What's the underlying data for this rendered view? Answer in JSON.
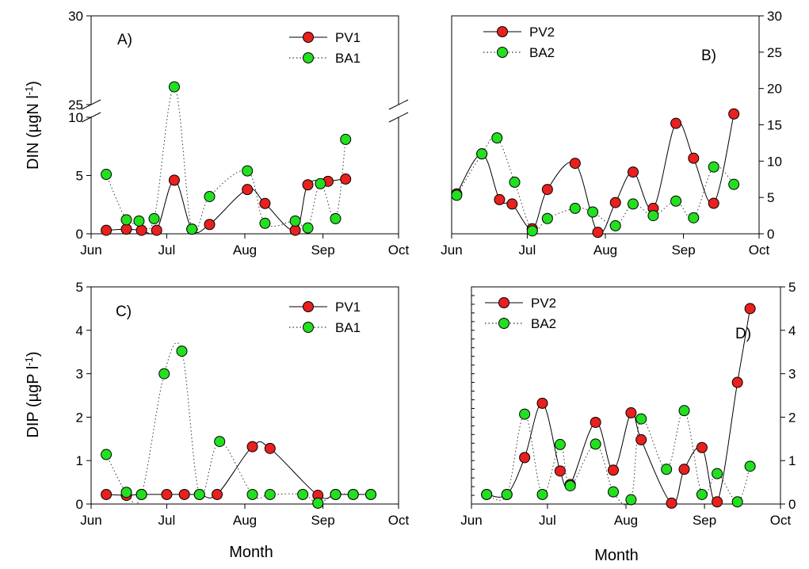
{
  "axis_titles": {
    "x_left": "Month",
    "x_right": "Month",
    "y_top_main": "DIN (µgN l",
    "y_top_sup": "-1",
    "y_top_end": ")",
    "y_bottom_main": "DIP (µgP l",
    "y_bottom_sup": "-1",
    "y_bottom_end": ")"
  },
  "colors": {
    "pv": "#e8201e",
    "ba": "#22e01f",
    "marker_edge": "#000000"
  },
  "chart_data": [
    {
      "id": "A",
      "label": "A)",
      "type": "line",
      "y_axis_side": "left",
      "broken_axis": true,
      "y_break": [
        10,
        25
      ],
      "ylim": [
        0,
        30
      ],
      "yticks": [
        0,
        5,
        10,
        25,
        30
      ],
      "x_ticks": [
        "Jun",
        "Jul",
        "Aug",
        "Sep",
        "Oct"
      ],
      "x_tick_values": [
        0,
        30,
        61,
        92,
        122
      ],
      "xlim": [
        0,
        122
      ],
      "legend_position": "top-right",
      "series": [
        {
          "name": "PV1",
          "line": "solid",
          "color_key": "pv",
          "x": [
            6,
            14,
            20,
            26,
            33,
            40,
            47,
            62,
            69,
            81,
            86,
            94,
            101
          ],
          "y": [
            0.3,
            0.4,
            0.3,
            0.3,
            4.6,
            0.4,
            0.8,
            3.8,
            2.6,
            0.3,
            4.2,
            4.5,
            4.7
          ]
        },
        {
          "name": "BA1",
          "line": "dotted",
          "color_key": "ba",
          "x": [
            6,
            14,
            19,
            25,
            33,
            40,
            47,
            62,
            69,
            81,
            86,
            91,
            97,
            101
          ],
          "y": [
            5.1,
            1.2,
            1.1,
            1.3,
            26.0,
            0.4,
            3.2,
            5.4,
            0.9,
            1.1,
            0.5,
            4.3,
            1.3,
            8.1
          ]
        }
      ]
    },
    {
      "id": "B",
      "label": "B)",
      "type": "line",
      "y_axis_side": "right",
      "broken_axis": false,
      "ylim": [
        0,
        30
      ],
      "yticks": [
        0,
        5,
        10,
        15,
        20,
        25,
        30
      ],
      "x_ticks": [
        "Jun",
        "Jul",
        "Aug",
        "Sep",
        "Oct"
      ],
      "x_tick_values": [
        0,
        30,
        61,
        92,
        122
      ],
      "xlim": [
        0,
        122
      ],
      "legend_position": "top-left",
      "series": [
        {
          "name": "PV2",
          "line": "solid",
          "color_key": "pv",
          "x": [
            2,
            12,
            19,
            24,
            32,
            38,
            49,
            58,
            65,
            72,
            80,
            89,
            96,
            104,
            112
          ],
          "y": [
            5.5,
            11.0,
            4.7,
            4.1,
            0.7,
            6.1,
            9.7,
            0.2,
            4.3,
            8.5,
            3.5,
            15.2,
            10.4,
            4.2,
            16.5
          ]
        },
        {
          "name": "BA2",
          "line": "dotted",
          "color_key": "ba",
          "x": [
            2,
            12,
            18,
            25,
            32,
            38,
            49,
            56,
            65,
            72,
            80,
            89,
            96,
            104,
            112
          ],
          "y": [
            5.3,
            11.0,
            13.2,
            7.1,
            0.4,
            2.1,
            3.5,
            3.0,
            1.1,
            4.1,
            2.5,
            4.5,
            2.2,
            9.2,
            6.8
          ]
        }
      ]
    },
    {
      "id": "C",
      "label": "C)",
      "type": "line",
      "y_axis_side": "left",
      "broken_axis": false,
      "ylim": [
        0,
        5
      ],
      "yticks": [
        0,
        1,
        2,
        3,
        4,
        5
      ],
      "x_ticks": [
        "Jun",
        "Jul",
        "Aug",
        "Sep",
        "Oct"
      ],
      "x_tick_values": [
        0,
        30,
        61,
        92,
        122
      ],
      "xlim": [
        0,
        122
      ],
      "legend_position": "top-right",
      "series": [
        {
          "name": "PV1",
          "line": "solid",
          "color_key": "pv",
          "x": [
            6,
            14,
            20,
            30,
            37,
            43,
            50,
            64,
            71,
            90,
            97,
            104,
            111
          ],
          "y": [
            0.22,
            0.2,
            0.22,
            0.22,
            0.22,
            0.22,
            0.22,
            1.32,
            1.28,
            0.2,
            0.22,
            0.22,
            0.22
          ]
        },
        {
          "name": "BA1",
          "line": "dotted",
          "color_key": "ba",
          "x": [
            6,
            14,
            20,
            29,
            36,
            43,
            51,
            64,
            71,
            84,
            90,
            97,
            104,
            111
          ],
          "y": [
            1.14,
            0.27,
            0.22,
            3.0,
            3.52,
            0.22,
            1.44,
            0.22,
            0.22,
            0.22,
            0.02,
            0.22,
            0.22,
            0.22
          ]
        }
      ]
    },
    {
      "id": "D",
      "label": "D)",
      "type": "line",
      "y_axis_side": "right",
      "broken_axis": false,
      "ylim": [
        0,
        5
      ],
      "yticks": [
        0,
        1,
        2,
        3,
        4,
        5
      ],
      "x_ticks": [
        "Jun",
        "Jul",
        "Aug",
        "Sep",
        "Oct"
      ],
      "x_tick_values": [
        0,
        30,
        61,
        92,
        122
      ],
      "xlim": [
        0,
        122
      ],
      "legend_position": "top-left",
      "series": [
        {
          "name": "PV2",
          "line": "solid",
          "color_key": "pv",
          "x": [
            6,
            14,
            21,
            28,
            35,
            39,
            49,
            56,
            63,
            67,
            79,
            84,
            91,
            97,
            105,
            110
          ],
          "y": [
            0.22,
            0.22,
            1.07,
            2.32,
            0.76,
            0.45,
            1.88,
            0.78,
            2.1,
            1.48,
            0.02,
            0.8,
            1.3,
            0.05,
            2.8,
            4.5
          ]
        },
        {
          "name": "BA2",
          "line": "dotted",
          "color_key": "ba",
          "x": [
            6,
            14,
            21,
            28,
            35,
            39,
            49,
            56,
            63,
            67,
            77,
            84,
            91,
            97,
            105,
            110
          ],
          "y": [
            0.22,
            0.22,
            2.07,
            0.22,
            1.37,
            0.42,
            1.38,
            0.28,
            0.1,
            1.96,
            0.8,
            2.15,
            0.22,
            0.7,
            0.05,
            0.87
          ]
        }
      ]
    }
  ]
}
